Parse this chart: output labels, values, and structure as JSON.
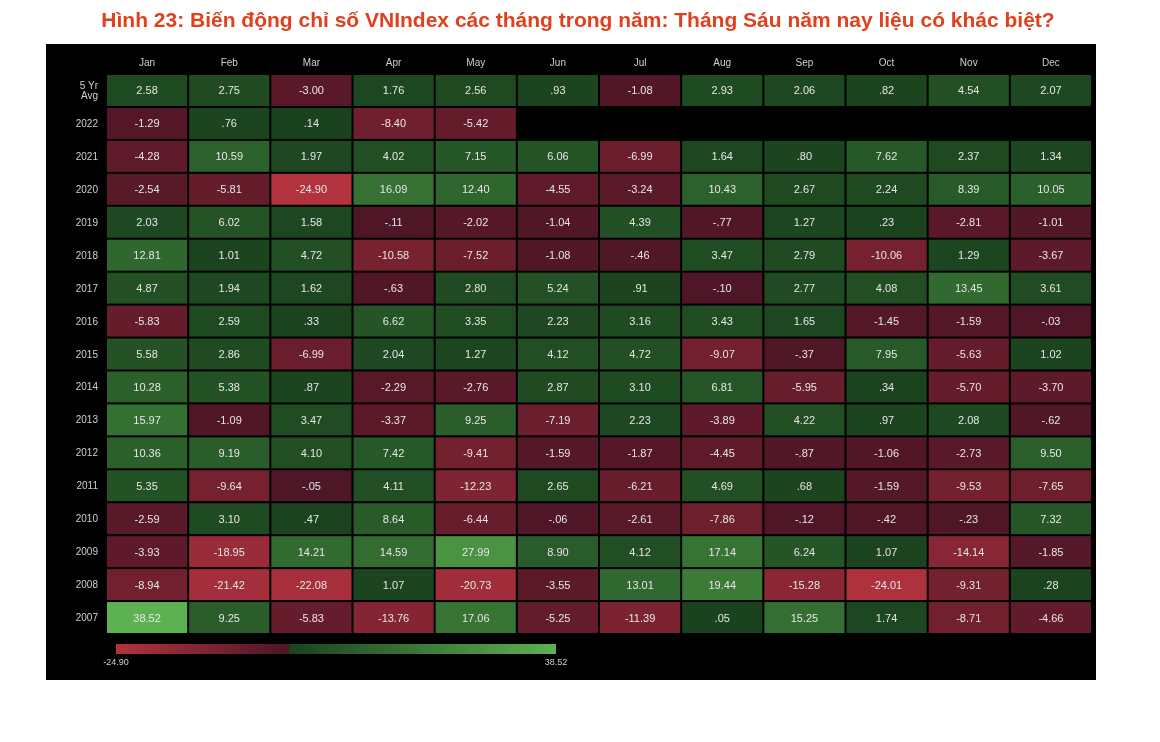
{
  "chart_data": {
    "type": "heatmap",
    "title": "Hình 23: Biến động chỉ số VNIndex các tháng trong năm: Tháng Sáu năm nay liệu có khác biệt?",
    "categories": [
      "Jan",
      "Feb",
      "Mar",
      "Apr",
      "May",
      "Jun",
      "Jul",
      "Aug",
      "Sep",
      "Oct",
      "Nov",
      "Dec"
    ],
    "y_categories": [
      "5 Yr Avg",
      "2022",
      "2021",
      "2020",
      "2019",
      "2018",
      "2017",
      "2016",
      "2015",
      "2014",
      "2013",
      "2012",
      "2011",
      "2010",
      "2009",
      "2008",
      "2007"
    ],
    "cells": [
      [
        2.58,
        2.75,
        -3.0,
        1.76,
        2.56,
        0.93,
        -1.08,
        2.93,
        2.06,
        0.82,
        4.54,
        2.07
      ],
      [
        -1.29,
        0.76,
        0.14,
        -8.4,
        -5.42,
        null,
        null,
        null,
        null,
        null,
        null,
        null
      ],
      [
        -4.28,
        10.59,
        1.97,
        4.02,
        7.15,
        6.06,
        -6.99,
        1.64,
        0.8,
        7.62,
        2.37,
        1.34
      ],
      [
        -2.54,
        -5.81,
        -24.9,
        16.09,
        12.4,
        -4.55,
        -3.24,
        10.43,
        2.67,
        2.24,
        8.39,
        10.05
      ],
      [
        2.03,
        6.02,
        1.58,
        -0.11,
        -2.02,
        -1.04,
        4.39,
        -0.77,
        1.27,
        0.23,
        -2.81,
        -1.01
      ],
      [
        12.81,
        1.01,
        4.72,
        -10.58,
        -7.52,
        -1.08,
        -0.46,
        3.47,
        2.79,
        -10.06,
        1.29,
        -3.67
      ],
      [
        4.87,
        1.94,
        1.62,
        -0.63,
        2.8,
        5.24,
        0.91,
        -0.1,
        2.77,
        4.08,
        13.45,
        3.61
      ],
      [
        -5.83,
        2.59,
        0.33,
        6.62,
        3.35,
        2.23,
        3.16,
        3.43,
        1.65,
        -1.45,
        -1.59,
        -0.03
      ],
      [
        5.58,
        2.86,
        -6.99,
        2.04,
        1.27,
        4.12,
        4.72,
        -9.07,
        -0.37,
        7.95,
        -5.63,
        1.02
      ],
      [
        10.28,
        5.38,
        0.87,
        -2.29,
        -2.76,
        2.87,
        3.1,
        6.81,
        -5.95,
        0.34,
        -5.7,
        -3.7
      ],
      [
        15.97,
        -1.09,
        3.47,
        -3.37,
        9.25,
        -7.19,
        2.23,
        -3.89,
        4.22,
        0.97,
        2.08,
        -0.62
      ],
      [
        10.36,
        9.19,
        4.1,
        7.42,
        -9.41,
        -1.59,
        -1.87,
        -4.45,
        -0.87,
        -1.06,
        -2.73,
        9.5
      ],
      [
        5.35,
        -9.64,
        -0.05,
        4.11,
        -12.23,
        2.65,
        -6.21,
        4.69,
        0.68,
        -1.59,
        -9.53,
        -7.65
      ],
      [
        -2.59,
        3.1,
        0.47,
        8.64,
        -6.44,
        -0.06,
        -2.61,
        -7.86,
        -0.12,
        -0.42,
        -0.23,
        7.32
      ],
      [
        -3.93,
        -18.95,
        14.21,
        14.59,
        27.99,
        8.9,
        4.12,
        17.14,
        6.24,
        1.07,
        -14.14,
        -1.85
      ],
      [
        -8.94,
        -21.42,
        -22.08,
        1.07,
        -20.73,
        -3.55,
        13.01,
        19.44,
        -15.28,
        -24.01,
        -9.31,
        0.28
      ],
      [
        38.52,
        9.25,
        -5.83,
        -13.76,
        17.06,
        -5.25,
        -11.39,
        0.05,
        15.25,
        1.74,
        -8.71,
        -4.66
      ]
    ],
    "cell_labels": [
      [
        "2.58",
        "2.75",
        "-3.00",
        "1.76",
        "2.56",
        ".93",
        "-1.08",
        "2.93",
        "2.06",
        ".82",
        "4.54",
        "2.07"
      ],
      [
        "-1.29",
        ".76",
        ".14",
        "-8.40",
        "-5.42",
        null,
        null,
        null,
        null,
        null,
        null,
        null
      ],
      [
        "-4.28",
        "10.59",
        "1.97",
        "4.02",
        "7.15",
        "6.06",
        "-6.99",
        "1.64",
        ".80",
        "7.62",
        "2.37",
        "1.34"
      ],
      [
        "-2.54",
        "-5.81",
        "-24.90",
        "16.09",
        "12.40",
        "-4.55",
        "-3.24",
        "10.43",
        "2.67",
        "2.24",
        "8.39",
        "10.05"
      ],
      [
        "2.03",
        "6.02",
        "1.58",
        "-.11",
        "-2.02",
        "-1.04",
        "4.39",
        "-.77",
        "1.27",
        ".23",
        "-2.81",
        "-1.01"
      ],
      [
        "12.81",
        "1.01",
        "4.72",
        "-10.58",
        "-7.52",
        "-1.08",
        "-.46",
        "3.47",
        "2.79",
        "-10.06",
        "1.29",
        "-3.67"
      ],
      [
        "4.87",
        "1.94",
        "1.62",
        "-.63",
        "2.80",
        "5.24",
        ".91",
        "-.10",
        "2.77",
        "4.08",
        "13.45",
        "3.61"
      ],
      [
        "-5.83",
        "2.59",
        ".33",
        "6.62",
        "3.35",
        "2.23",
        "3.16",
        "3.43",
        "1.65",
        "-1.45",
        "-1.59",
        "-.03"
      ],
      [
        "5.58",
        "2.86",
        "-6.99",
        "2.04",
        "1.27",
        "4.12",
        "4.72",
        "-9.07",
        "-.37",
        "7.95",
        "-5.63",
        "1.02"
      ],
      [
        "10.28",
        "5.38",
        ".87",
        "-2.29",
        "-2.76",
        "2.87",
        "3.10",
        "6.81",
        "-5.95",
        ".34",
        "-5.70",
        "-3.70"
      ],
      [
        "15.97",
        "-1.09",
        "3.47",
        "-3.37",
        "9.25",
        "-7.19",
        "2.23",
        "-3.89",
        "4.22",
        ".97",
        "2.08",
        "-.62"
      ],
      [
        "10.36",
        "9.19",
        "4.10",
        "7.42",
        "-9.41",
        "-1.59",
        "-1.87",
        "-4.45",
        "-.87",
        "-1.06",
        "-2.73",
        "9.50"
      ],
      [
        "5.35",
        "-9.64",
        "-.05",
        "4.11",
        "-12.23",
        "2.65",
        "-6.21",
        "4.69",
        ".68",
        "-1.59",
        "-9.53",
        "-7.65"
      ],
      [
        "-2.59",
        "3.10",
        ".47",
        "8.64",
        "-6.44",
        "-.06",
        "-2.61",
        "-7.86",
        "-.12",
        "-.42",
        "-.23",
        "7.32"
      ],
      [
        "-3.93",
        "-18.95",
        "14.21",
        "14.59",
        "27.99",
        "8.90",
        "4.12",
        "17.14",
        "6.24",
        "1.07",
        "-14.14",
        "-1.85"
      ],
      [
        "-8.94",
        "-21.42",
        "-22.08",
        "1.07",
        "-20.73",
        "-3.55",
        "13.01",
        "19.44",
        "-15.28",
        "-24.01",
        "-9.31",
        ".28"
      ],
      [
        "38.52",
        "9.25",
        "-5.83",
        "-13.76",
        "17.06",
        "-5.25",
        "-11.39",
        ".05",
        "15.25",
        "1.74",
        "-8.71",
        "-4.66"
      ]
    ],
    "clim": [
      -24.9,
      38.52
    ],
    "cticks": [
      {
        "value": -24.9,
        "label": "-24.90"
      },
      {
        "value": 38.52,
        "label": "38.52"
      }
    ]
  }
}
